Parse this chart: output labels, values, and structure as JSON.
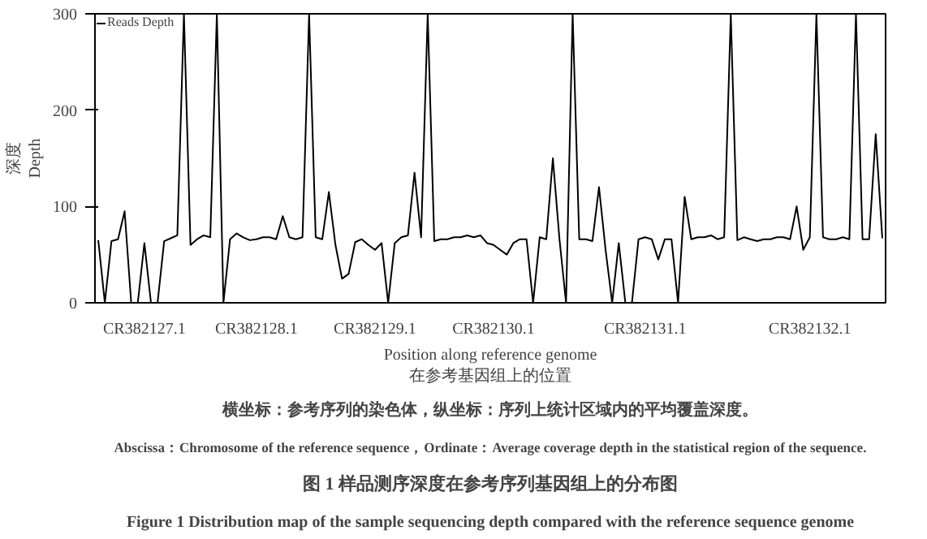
{
  "chart_data": {
    "type": "line",
    "title": "图 1 样品测序深度在参考序列基因组上的分布图",
    "subtitle": "Figure 1 Distribution map of the sample sequencing depth compared with the reference sequence genome",
    "xlabel": "Position along reference genome\n在参考基因组上的位置",
    "ylabel": "深度\nDepth",
    "annotations": [
      "横坐标：参考序列的染色体，纵坐标：序列上统计区域内的平均覆盖深度。",
      "Abscissa：Chromosome of the reference sequence，Ordinate：Average coverage depth in the statistical region of the sequence."
    ],
    "categories": [
      null,
      null,
      null,
      null,
      null,
      null,
      null,
      "CR382127.1",
      null,
      null,
      null,
      null,
      null,
      null,
      null,
      null,
      null,
      null,
      null,
      null,
      null,
      null,
      null,
      null,
      "CR382128.1",
      null,
      null,
      null,
      null,
      null,
      null,
      null,
      null,
      null,
      null,
      null,
      null,
      null,
      null,
      null,
      null,
      null,
      "CR382129.1",
      null,
      null,
      null,
      null,
      null,
      null,
      null,
      null,
      null,
      null,
      null,
      null,
      null,
      null,
      null,
      null,
      null,
      "CR382130.1",
      null,
      null,
      null,
      null,
      null,
      null,
      null,
      null,
      null,
      null,
      null,
      null,
      null,
      null,
      null,
      null,
      null,
      null,
      null,
      null,
      null,
      null,
      "CR382131.1",
      null,
      null,
      null,
      null,
      null,
      null,
      null,
      null,
      null,
      null,
      null,
      null,
      null,
      null,
      null,
      null,
      null,
      null,
      null,
      null,
      null,
      null,
      null,
      null,
      "CR382132.1",
      null,
      null,
      null,
      null,
      null,
      null,
      null,
      null,
      null,
      null,
      null
    ],
    "ylim": [
      0,
      300
    ],
    "yticks": [
      0,
      100,
      200,
      300
    ],
    "grid": false,
    "legend": "top left",
    "marker": "none",
    "line_style": "solid",
    "series": [
      {
        "name": "Reads Depth",
        "color": "#000000",
        "values": [
          65,
          0,
          64,
          66,
          95,
          0,
          0,
          62,
          0,
          0,
          64,
          67,
          70,
          300,
          60,
          66,
          70,
          68,
          300,
          0,
          66,
          72,
          68,
          65,
          66,
          68,
          68,
          66,
          90,
          68,
          66,
          68,
          300,
          68,
          66,
          115,
          60,
          25,
          30,
          63,
          66,
          60,
          55,
          62,
          0,
          62,
          68,
          70,
          135,
          68,
          300,
          64,
          66,
          66,
          68,
          68,
          70,
          68,
          70,
          62,
          60,
          55,
          50,
          62,
          66,
          66,
          0,
          68,
          66,
          150,
          66,
          0,
          300,
          66,
          66,
          64,
          120,
          55,
          0,
          62,
          0,
          0,
          66,
          68,
          66,
          45,
          66,
          66,
          0,
          110,
          66,
          68,
          68,
          70,
          66,
          68,
          300,
          65,
          68,
          66,
          64,
          66,
          66,
          68,
          68,
          66,
          100,
          55,
          68,
          300,
          68,
          66,
          66,
          68,
          66,
          300,
          66,
          66,
          175,
          67
        ]
      }
    ]
  }
}
